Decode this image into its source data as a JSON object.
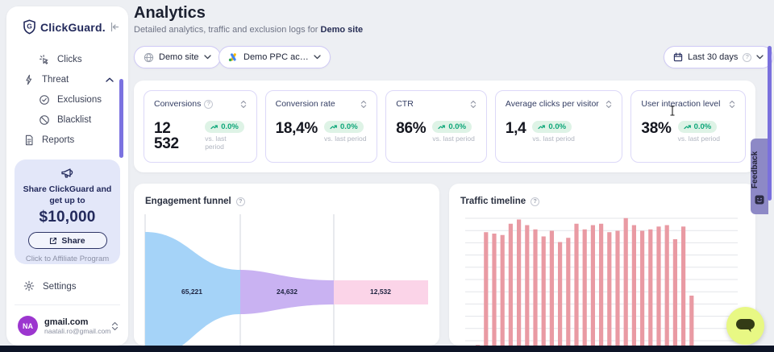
{
  "app": {
    "name": "ClickGuard."
  },
  "sidebar": {
    "items": [
      {
        "label": "Clicks",
        "icon": "clicks-icon",
        "indent": true
      },
      {
        "label": "Threat",
        "icon": "threat-icon",
        "expanded": true
      },
      {
        "label": "Exclusions",
        "icon": "exclusions-icon",
        "indent": true
      },
      {
        "label": "Blacklist",
        "icon": "blacklist-icon",
        "indent": true
      },
      {
        "label": "Reports",
        "icon": "reports-icon"
      }
    ],
    "promo": {
      "line1": "Share ClickGuard and",
      "line2": "get up to",
      "amount": "$10,000",
      "share_label": "Share",
      "affiliate_label": "Click to Affiliate Program"
    },
    "settings_label": "Settings",
    "account": {
      "initials": "NA",
      "name": "gmail.com",
      "email": "naatali.ro@gmail.com"
    }
  },
  "header": {
    "title": "Analytics",
    "subtitle": "Detailed analytics, traffic and exclusion logs for",
    "subtitle_target": "Demo site"
  },
  "filters": {
    "site_label": "Demo site",
    "ppc_label": "Demo PPC ac…",
    "range_label": "Last 30 days"
  },
  "stats": [
    {
      "label": "Conversions",
      "has_info": true,
      "value": "12 532",
      "change": "0.0%",
      "caption": "vs. last period"
    },
    {
      "label": "Conversion rate",
      "has_info": false,
      "value": "18,4%",
      "change": "0.0%",
      "caption": "vs. last period"
    },
    {
      "label": "CTR",
      "has_info": false,
      "value": "86%",
      "change": "0.0%",
      "caption": "vs. last period"
    },
    {
      "label": "Average clicks per visitor",
      "has_info": false,
      "value": "1,4",
      "change": "0.0%",
      "caption": "vs. last period"
    },
    {
      "label": "User interaction level",
      "has_info": false,
      "value": "38%",
      "change": "0.0%",
      "caption": "vs. last period"
    }
  ],
  "feedback_label": "Feedback",
  "chart_data": [
    {
      "type": "funnel",
      "title": "Engagement funnel",
      "stages": [
        {
          "label": "65,221",
          "value": 65221,
          "color": "#a5d3f8"
        },
        {
          "label": "24,632",
          "value": 24632,
          "color": "#c9b2f2"
        },
        {
          "label": "12,532",
          "value": 12532,
          "color": "#fbd4e8"
        }
      ],
      "grid": "vertical-separators"
    },
    {
      "type": "bar",
      "title": "Traffic timeline",
      "color": "#e99aa3",
      "values_relative": [
        0.05,
        0.85,
        0.84,
        0.83,
        0.91,
        0.94,
        0.9,
        0.87,
        0.82,
        0.86,
        0.78,
        0.81,
        0.91,
        0.87,
        0.9,
        0.91,
        0.85,
        0.86,
        0.95,
        0.9,
        0.86,
        0.87,
        0.89,
        0.9,
        0.8,
        0.89,
        0.4
      ],
      "x_tick_labels_visible": false,
      "y_tick_labels_visible": false,
      "grid": "horizontal"
    }
  ],
  "colors": {
    "navy": "#232a5c",
    "accent_scrollbar": "#7a70dd",
    "pill_border": "#cfc9f5",
    "card_border": "#dcd8f8",
    "badge_bg": "#def3e6",
    "badge_text": "#0ca678",
    "bar": "#e99aa3",
    "promo_bg": "#e3e7f9",
    "feedback_bg": "#8d89c6",
    "chat_bg": "#e8f884",
    "bottom_bar": "#0d1426",
    "avatar_bg": "#9c36cf"
  }
}
